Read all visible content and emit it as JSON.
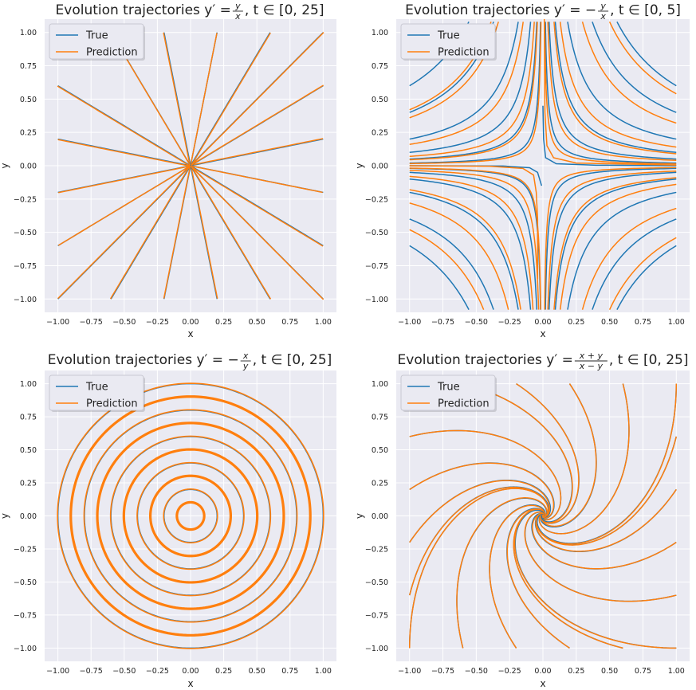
{
  "colors": {
    "true": "#1f77b4",
    "prediction": "#ff7f0e",
    "plot_bg": "#eaeaf2",
    "grid": "#ffffff"
  },
  "chart_data": [
    {
      "type": "line",
      "title": "Evolution trajectories  y' = y/x,  t ∈ [0, 25]",
      "title_parts": {
        "prefix": "Evolution trajectories",
        "lhs": "y′ =",
        "num": "y",
        "den": "x",
        "neg": "",
        "range": ", t ∈ [0, 25]"
      },
      "xlabel": "x",
      "ylabel": "y",
      "xlim": [
        -1.1,
        1.1
      ],
      "ylim": [
        -1.1,
        1.1
      ],
      "xticks": [
        "−1.00",
        "−0.75",
        "−0.50",
        "−0.25",
        "0.00",
        "0.25",
        "0.50",
        "0.75",
        "1.00"
      ],
      "yticks": [
        "1.00",
        "0.75",
        "0.50",
        "0.25",
        "0.00",
        "−0.25",
        "−0.50",
        "−0.75",
        "−1.00"
      ],
      "grid": true,
      "legend": "top-left",
      "series": [
        {
          "name": "True"
        },
        {
          "name": "Prediction"
        }
      ],
      "field": "radial",
      "initial_points": [
        [
          -1,
          -1
        ],
        [
          -1,
          -0.6
        ],
        [
          -1,
          -0.2
        ],
        [
          -1,
          0.2
        ],
        [
          -1,
          0.6
        ],
        [
          -0.6,
          -1
        ],
        [
          -0.2,
          -1
        ],
        [
          0.2,
          -1
        ],
        [
          0.6,
          -1
        ],
        [
          1,
          -1
        ],
        [
          1,
          -0.6
        ],
        [
          1,
          -0.2
        ],
        [
          1,
          0.2
        ],
        [
          1,
          0.6
        ],
        [
          1,
          1
        ],
        [
          0.6,
          1
        ],
        [
          0.2,
          1
        ],
        [
          -0.2,
          1
        ],
        [
          -0.6,
          1
        ]
      ]
    },
    {
      "type": "line",
      "title": "Evolution trajectories  y' = −y/x,  t ∈ [0, 5]",
      "title_parts": {
        "prefix": "Evolution trajectories",
        "lhs": "y′ =",
        "num": "y",
        "den": "x",
        "neg": "−",
        "range": ", t ∈ [0, 5]"
      },
      "xlabel": "x",
      "ylabel": "y",
      "xlim": [
        -1.1,
        1.1
      ],
      "ylim": [
        -1.1,
        1.1
      ],
      "xticks": [
        "−1.00",
        "−0.75",
        "−0.50",
        "−0.25",
        "0.00",
        "0.25",
        "0.50",
        "0.75",
        "1.00"
      ],
      "yticks": [
        "1.00",
        "0.75",
        "0.50",
        "0.25",
        "0.00",
        "−0.25",
        "−0.50",
        "−0.75",
        "−1.00"
      ],
      "grid": true,
      "legend": "top-left",
      "series": [
        {
          "name": "True"
        },
        {
          "name": "Prediction"
        }
      ],
      "field": "hyperbolic",
      "hyperbola_k": [
        0.02,
        0.05,
        0.1,
        0.2,
        0.4,
        0.6
      ]
    },
    {
      "type": "line",
      "title": "Evolution trajectories  y' = −x/y,  t ∈ [0, 25]",
      "title_parts": {
        "prefix": "Evolution trajectories",
        "lhs": "y′ =",
        "num": "x",
        "den": "y",
        "neg": "−",
        "range": ", t ∈ [0, 25]"
      },
      "xlabel": "x",
      "ylabel": "y",
      "xlim": [
        -1.1,
        1.1
      ],
      "ylim": [
        -1.1,
        1.1
      ],
      "xticks": [
        "−1.00",
        "−0.75",
        "−0.50",
        "−0.25",
        "0.00",
        "0.25",
        "0.50",
        "0.75",
        "1.00"
      ],
      "yticks": [
        "1.00",
        "0.75",
        "0.50",
        "0.25",
        "0.00",
        "−0.25",
        "−0.50",
        "−0.75",
        "−1.00"
      ],
      "grid": true,
      "legend": "top-left",
      "series": [
        {
          "name": "True"
        },
        {
          "name": "Prediction"
        }
      ],
      "field": "circular",
      "radii": [
        0.1,
        0.2,
        0.3,
        0.4,
        0.5,
        0.6,
        0.7,
        0.8,
        0.9,
        1.0
      ]
    },
    {
      "type": "line",
      "title": "Evolution trajectories  y' = (x+y)/(x−y),  t ∈ [0, 25]",
      "title_parts": {
        "prefix": "Evolution trajectories",
        "lhs": "y′ =",
        "num": "x + y",
        "den": "x − y",
        "neg": "",
        "range": ", t ∈ [0, 25]"
      },
      "xlabel": "x",
      "ylabel": "y",
      "xlim": [
        -1.1,
        1.1
      ],
      "ylim": [
        -1.1,
        1.1
      ],
      "xticks": [
        "−1.00",
        "−0.75",
        "−0.50",
        "−0.25",
        "0.00",
        "0.25",
        "0.50",
        "0.75",
        "1.00"
      ],
      "yticks": [
        "1.00",
        "0.75",
        "0.50",
        "0.25",
        "0.00",
        "−0.25",
        "−0.50",
        "−0.75",
        "−1.00"
      ],
      "grid": true,
      "legend": "top-left",
      "series": [
        {
          "name": "True"
        },
        {
          "name": "Prediction"
        }
      ],
      "field": "spiral",
      "initial_points": [
        [
          -1,
          -1
        ],
        [
          -1,
          -0.6
        ],
        [
          -1,
          -0.2
        ],
        [
          -1,
          0.2
        ],
        [
          -1,
          0.6
        ],
        [
          -0.6,
          -1
        ],
        [
          -0.2,
          -1
        ],
        [
          0.2,
          -1
        ],
        [
          0.6,
          -1
        ],
        [
          1,
          -1
        ],
        [
          1,
          -0.6
        ],
        [
          1,
          -0.2
        ],
        [
          1,
          0.2
        ],
        [
          1,
          0.6
        ],
        [
          1,
          1
        ],
        [
          0.6,
          1
        ],
        [
          0.2,
          1
        ],
        [
          -0.2,
          1
        ],
        [
          -0.6,
          1
        ]
      ]
    }
  ]
}
